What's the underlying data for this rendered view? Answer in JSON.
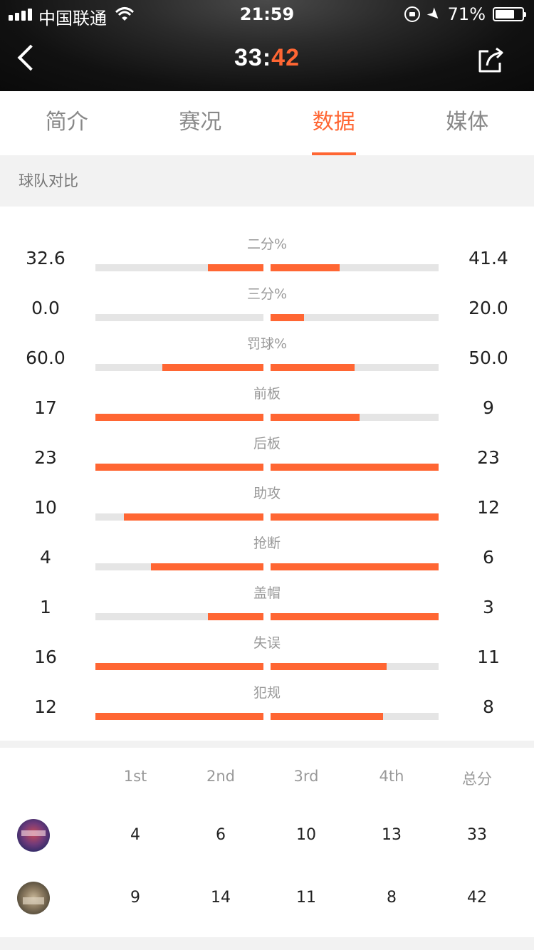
{
  "status_bar": {
    "carrier": "中国联通",
    "time": "21:59",
    "battery": "71%",
    "battery_level": 0.71
  },
  "header": {
    "score_home": "33",
    "score_sep": ":",
    "score_away": "42"
  },
  "tabs": [
    {
      "label": "简介"
    },
    {
      "label": "赛况"
    },
    {
      "label": "数据",
      "active": true
    },
    {
      "label": "媒体"
    }
  ],
  "section": {
    "title": "球队对比"
  },
  "stats": [
    {
      "label": "二分%",
      "home": "32.6",
      "away": "41.4",
      "home_fill": 0.33,
      "away_fill": 0.41
    },
    {
      "label": "三分%",
      "home": "0.0",
      "away": "20.0",
      "home_fill": 0.0,
      "away_fill": 0.2
    },
    {
      "label": "罚球%",
      "home": "60.0",
      "away": "50.0",
      "home_fill": 0.6,
      "away_fill": 0.5
    },
    {
      "label": "前板",
      "home": "17",
      "away": "9",
      "home_fill": 1.0,
      "away_fill": 0.53
    },
    {
      "label": "后板",
      "home": "23",
      "away": "23",
      "home_fill": 1.0,
      "away_fill": 1.0
    },
    {
      "label": "助攻",
      "home": "10",
      "away": "12",
      "home_fill": 0.83,
      "away_fill": 1.0
    },
    {
      "label": "抢断",
      "home": "4",
      "away": "6",
      "home_fill": 0.67,
      "away_fill": 1.0
    },
    {
      "label": "盖帽",
      "home": "1",
      "away": "3",
      "home_fill": 0.33,
      "away_fill": 1.0
    },
    {
      "label": "失误",
      "home": "16",
      "away": "11",
      "home_fill": 1.0,
      "away_fill": 0.69
    },
    {
      "label": "犯规",
      "home": "12",
      "away": "8",
      "home_fill": 1.0,
      "away_fill": 0.67
    }
  ],
  "quarters": {
    "headers": [
      "1st",
      "2nd",
      "3rd",
      "4th",
      "总分"
    ],
    "home": [
      "4",
      "6",
      "10",
      "13",
      "33"
    ],
    "away": [
      "9",
      "14",
      "11",
      "8",
      "42"
    ]
  },
  "colors": {
    "accent": "#ff6633",
    "track": "#e5e5e5"
  },
  "icons": [
    "back-icon",
    "share-icon",
    "wifi-icon",
    "signal-icon",
    "rotation-lock-icon",
    "location-icon",
    "battery-icon"
  ]
}
